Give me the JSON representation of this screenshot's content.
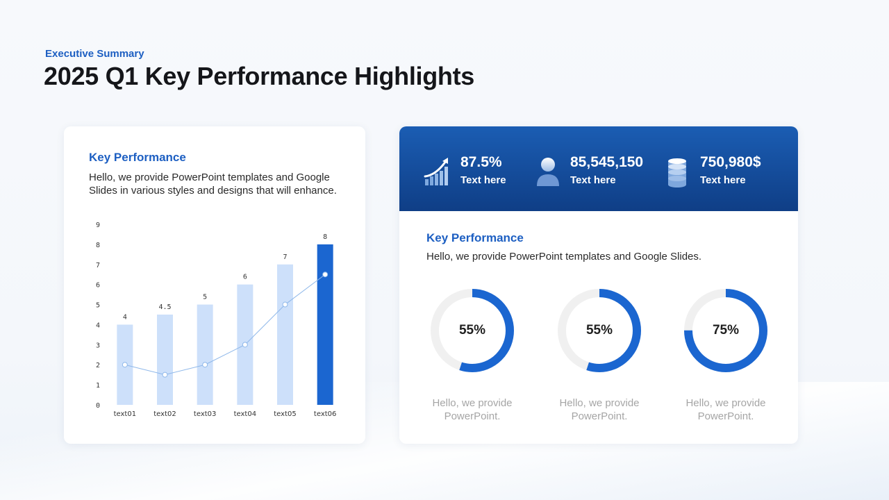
{
  "header": {
    "eyebrow": "Executive Summary",
    "title": "2025 Q1 Key Performance Highlights"
  },
  "left_card": {
    "heading": "Key Performance",
    "text": "Hello, we provide PowerPoint templates and Google Slides in various styles and designs that will enhance."
  },
  "chart_data": {
    "type": "bar",
    "categories": [
      "text01",
      "text02",
      "text03",
      "text04",
      "text05",
      "text06"
    ],
    "series": [
      {
        "type": "bar",
        "values": [
          4,
          4.5,
          5,
          6,
          7,
          8
        ],
        "data_labels": [
          "4",
          "4.5",
          "5",
          "6",
          "7",
          "8"
        ]
      },
      {
        "type": "line",
        "values": [
          2,
          1.5,
          2,
          3,
          5,
          6.5
        ]
      }
    ],
    "y_ticks": [
      "0",
      "1",
      "2",
      "3",
      "4",
      "5",
      "6",
      "7",
      "8",
      "9"
    ],
    "ylim": [
      0,
      9
    ],
    "highlight_index": 5,
    "colors": {
      "bar": "#cde0fa",
      "bar_highlight": "#1b66d0",
      "line": "#8fb8ea",
      "point_fill": "#ffffff"
    },
    "grid": false,
    "legend": "none"
  },
  "banner": {
    "colors": {
      "top": "#1b5db3",
      "bottom": "#0f3e86"
    },
    "stats": [
      {
        "icon": "growth-chart-icon",
        "value": "87.5%",
        "label": "Text here"
      },
      {
        "icon": "user-icon",
        "value": "85,545,150",
        "label": "Text here"
      },
      {
        "icon": "database-icon",
        "value": "750,980$",
        "label": "Text here"
      }
    ]
  },
  "right_card": {
    "heading": "Key Performance",
    "text": "Hello, we provide PowerPoint templates and Google Slides.",
    "donuts": [
      {
        "percent": 55,
        "label": "55%",
        "caption": "Hello, we provide PowerPoint."
      },
      {
        "percent": 55,
        "label": "55%",
        "caption": "Hello, we provide PowerPoint."
      },
      {
        "percent": 75,
        "label": "75%",
        "caption": "Hello, we provide PowerPoint."
      }
    ],
    "colors": {
      "ring": "#1b66d0",
      "track": "#f0f0f0"
    }
  },
  "accent_color": "#1d5fc2"
}
